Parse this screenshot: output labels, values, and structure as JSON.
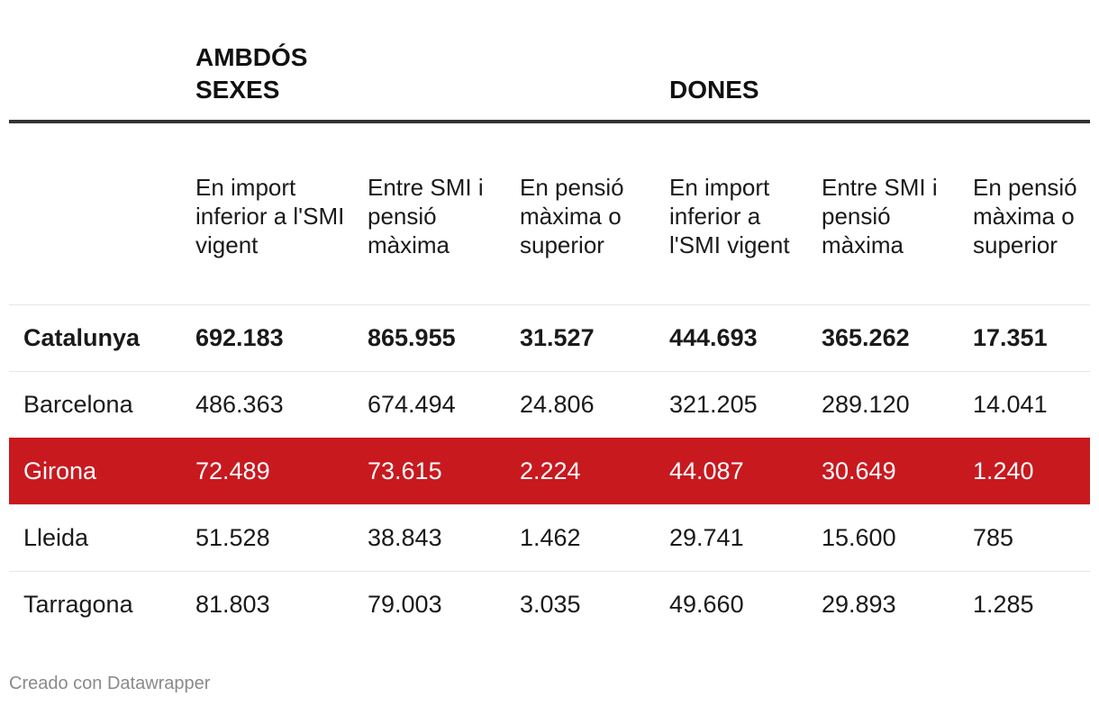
{
  "chart_data": {
    "type": "table",
    "column_groups": [
      {
        "label": "AMBDÓS SEXES",
        "columns": [
          0,
          1,
          2
        ]
      },
      {
        "label": "DONES",
        "columns": [
          3,
          4,
          5
        ]
      }
    ],
    "columns": [
      "En import inferior a l'SMI vigent",
      "Entre SMI i pensió màxima",
      "En pensió màxima o superior",
      "En import inferior a l'SMI vigent",
      "Entre SMI i pensió màxima",
      "En pensió màxima o superior"
    ],
    "rows": [
      {
        "label": "Catalunya",
        "values": [
          "692.183",
          "865.955",
          "31.527",
          "444.693",
          "365.262",
          "17.351"
        ],
        "bold": true,
        "highlight": false
      },
      {
        "label": "Barcelona",
        "values": [
          "486.363",
          "674.494",
          "24.806",
          "321.205",
          "289.120",
          "14.041"
        ],
        "bold": false,
        "highlight": false
      },
      {
        "label": "Girona",
        "values": [
          "72.489",
          "73.615",
          "2.224",
          "44.087",
          "30.649",
          "1.240"
        ],
        "bold": false,
        "highlight": true
      },
      {
        "label": "Lleida",
        "values": [
          "51.528",
          "38.843",
          "1.462",
          "29.741",
          "15.600",
          "785"
        ],
        "bold": false,
        "highlight": false
      },
      {
        "label": "Tarragona",
        "values": [
          "81.803",
          "79.003",
          "3.035",
          "49.660",
          "29.893",
          "1.285"
        ],
        "bold": false,
        "highlight": false
      }
    ],
    "highlight_color": "#c8191f"
  },
  "footer": {
    "credit": "Creado con Datawrapper"
  }
}
